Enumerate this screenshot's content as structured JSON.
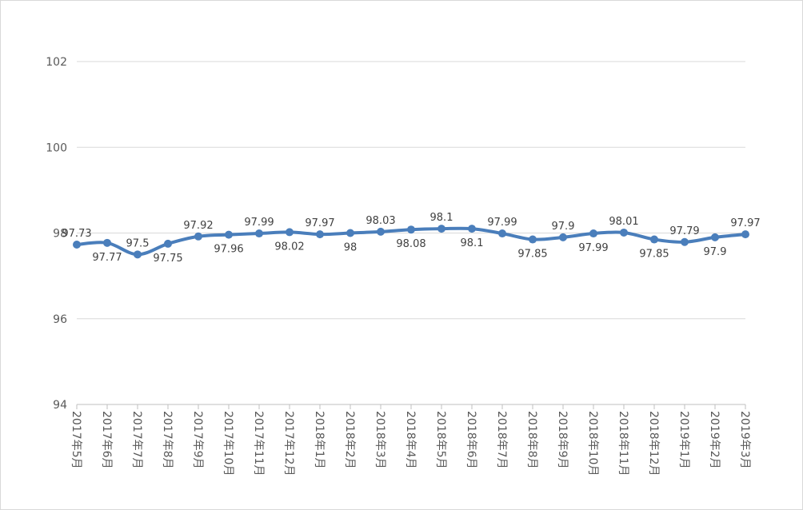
{
  "chart_data": {
    "type": "line",
    "categories": [
      "2017年5月",
      "2017年6月",
      "2017年7月",
      "2017年8月",
      "2017年9月",
      "2017年10月",
      "2017年11月",
      "2017年12月",
      "2018年1月",
      "2018年2月",
      "2018年3月",
      "2018年4月",
      "2018年5月",
      "2018年6月",
      "2018年7月",
      "2018年8月",
      "2018年9月",
      "2018年10月",
      "2018年11月",
      "2018年12月",
      "2019年1月",
      "2019年2月",
      "2019年3月"
    ],
    "series": [
      {
        "color": "#4a7ebb",
        "values": [
          97.73,
          97.77,
          97.5,
          97.75,
          97.92,
          97.96,
          97.99,
          98.02,
          97.97,
          98,
          98.03,
          98.08,
          98.1,
          98.1,
          97.99,
          97.85,
          97.9,
          97.99,
          98.01,
          97.85,
          97.79,
          97.9,
          97.97
        ]
      }
    ],
    "ylim": [
      94,
      102
    ],
    "yticks": [
      94,
      96,
      98,
      100,
      102
    ],
    "grid": true
  }
}
